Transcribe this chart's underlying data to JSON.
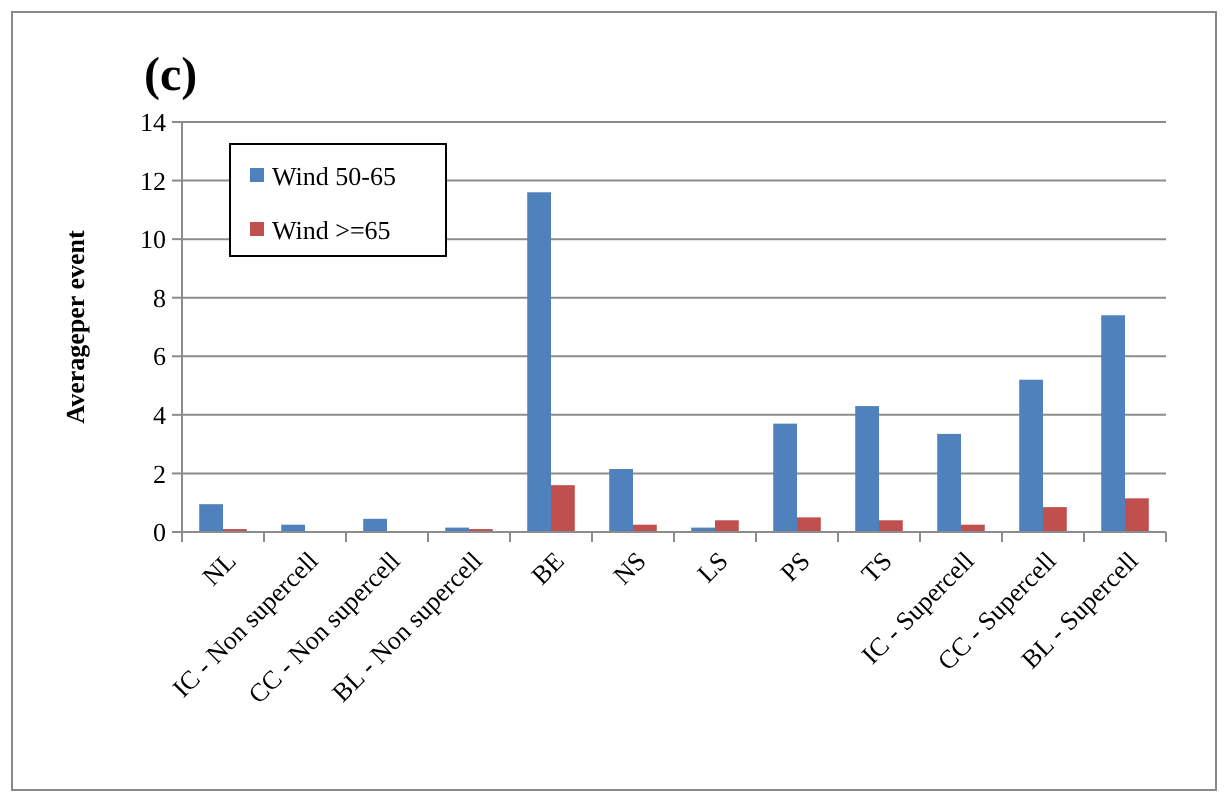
{
  "chart_data": {
    "type": "bar",
    "title": "(c)",
    "ylabel": "Averageper event",
    "categories": [
      "NL",
      "IC - Non supercell",
      "CC - Non supercell",
      "BL - Non supercell",
      "BE",
      "NS",
      "LS",
      "PS",
      "TS",
      "IC - Supercell",
      "CC - Supercell",
      "BL - Supercell"
    ],
    "series": [
      {
        "name": "Wind 50-65",
        "color": "#4f81bd",
        "values": [
          0.95,
          0.25,
          0.45,
          0.15,
          11.6,
          2.15,
          0.15,
          3.7,
          4.3,
          3.35,
          5.2,
          7.4
        ]
      },
      {
        "name": "Wind >=65",
        "color": "#c0504d",
        "values": [
          0.1,
          0,
          0,
          0.1,
          1.6,
          0.25,
          0.4,
          0.5,
          0.4,
          0.25,
          0.85,
          1.15
        ]
      }
    ],
    "ylim": [
      0,
      14
    ],
    "yticks": [
      0,
      2,
      4,
      6,
      8,
      10,
      12,
      14
    ],
    "grid": "y",
    "legend": "top left"
  }
}
